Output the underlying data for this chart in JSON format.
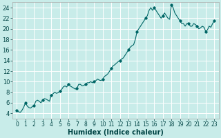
{
  "title": "",
  "xlabel": "Humidex (Indice chaleur)",
  "ylabel": "",
  "background_color": "#c8ece9",
  "grid_color": "#ffffff",
  "line_color": "#006666",
  "marker_color": "#006666",
  "xlim": [
    -0.5,
    23.5
  ],
  "ylim": [
    3,
    25
  ],
  "yticks": [
    4,
    6,
    8,
    10,
    12,
    14,
    16,
    18,
    20,
    22,
    24
  ],
  "xtick_labels": [
    "0",
    "1",
    "2",
    "3",
    "4",
    "5",
    "6",
    "7",
    "8",
    "9",
    "10",
    "11",
    "12",
    "13",
    "14",
    "15",
    "16",
    "17",
    "18",
    "19",
    "20",
    "21",
    "22",
    "23"
  ],
  "x": [
    0,
    0.2,
    0.4,
    0.6,
    0.8,
    1.0,
    1.2,
    1.4,
    1.6,
    1.8,
    2.0,
    2.2,
    2.4,
    2.6,
    2.8,
    3.0,
    3.2,
    3.4,
    3.6,
    3.8,
    4.0,
    4.2,
    4.4,
    4.6,
    4.8,
    5.0,
    5.2,
    5.4,
    5.6,
    5.8,
    6.0,
    6.2,
    6.4,
    6.6,
    6.8,
    7.0,
    7.2,
    7.4,
    7.6,
    7.8,
    8.0,
    8.2,
    8.4,
    8.6,
    8.8,
    9.0,
    9.2,
    9.4,
    9.6,
    9.8,
    10.0,
    10.2,
    10.4,
    10.6,
    10.8,
    11.0,
    11.2,
    11.4,
    11.6,
    11.8,
    12.0,
    12.2,
    12.4,
    12.6,
    12.8,
    13.0,
    13.2,
    13.4,
    13.6,
    13.8,
    14.0,
    14.2,
    14.4,
    14.6,
    14.8,
    15.0,
    15.2,
    15.4,
    15.6,
    15.8,
    16.0,
    16.2,
    16.4,
    16.6,
    16.8,
    17.0,
    17.2,
    17.4,
    17.6,
    17.8,
    18.0,
    18.2,
    18.4,
    18.6,
    18.8,
    19.0,
    19.2,
    19.4,
    19.6,
    19.8,
    20.0,
    20.2,
    20.4,
    20.6,
    20.8,
    21.0,
    21.2,
    21.4,
    21.6,
    21.8,
    22.0,
    22.2,
    22.4,
    22.6,
    22.8,
    23.0
  ],
  "y": [
    4.5,
    4.3,
    4.2,
    4.6,
    5.2,
    6.0,
    5.4,
    5.1,
    5.0,
    5.3,
    5.5,
    6.3,
    6.5,
    6.3,
    6.0,
    6.5,
    6.8,
    6.7,
    6.5,
    6.3,
    7.5,
    7.7,
    8.0,
    7.8,
    7.9,
    8.2,
    8.5,
    9.0,
    9.2,
    9.0,
    9.5,
    9.2,
    9.0,
    8.8,
    8.6,
    8.8,
    9.5,
    9.5,
    9.2,
    9.3,
    9.5,
    9.8,
    9.8,
    10.0,
    9.8,
    10.0,
    10.2,
    10.5,
    10.3,
    10.2,
    10.5,
    11.0,
    11.2,
    11.5,
    12.0,
    12.5,
    13.0,
    13.2,
    13.5,
    13.8,
    14.0,
    14.3,
    14.5,
    15.0,
    15.5,
    16.0,
    16.5,
    16.8,
    17.0,
    18.0,
    19.5,
    20.0,
    20.5,
    21.0,
    21.5,
    22.0,
    22.5,
    23.5,
    24.0,
    23.5,
    24.0,
    23.5,
    23.0,
    22.5,
    22.0,
    22.5,
    23.0,
    22.5,
    22.0,
    21.8,
    24.5,
    24.0,
    23.0,
    22.5,
    22.0,
    21.5,
    21.0,
    21.0,
    20.5,
    21.0,
    21.0,
    20.5,
    20.5,
    21.0,
    20.8,
    20.5,
    20.0,
    20.2,
    20.5,
    20.3,
    19.5,
    19.8,
    20.5,
    20.3,
    21.0,
    21.5
  ],
  "marker_x": [
    0,
    1,
    2,
    3,
    4,
    5,
    6,
    7,
    8,
    9,
    10,
    11,
    12,
    13,
    14,
    15,
    16,
    17,
    18,
    19,
    20,
    21,
    22,
    23
  ],
  "marker_y": [
    4.5,
    6.0,
    5.5,
    6.5,
    7.5,
    8.2,
    9.5,
    8.8,
    9.5,
    10.0,
    10.5,
    12.5,
    14.0,
    16.0,
    19.5,
    22.0,
    24.0,
    22.5,
    24.5,
    21.5,
    21.0,
    20.5,
    19.5,
    21.5
  ]
}
